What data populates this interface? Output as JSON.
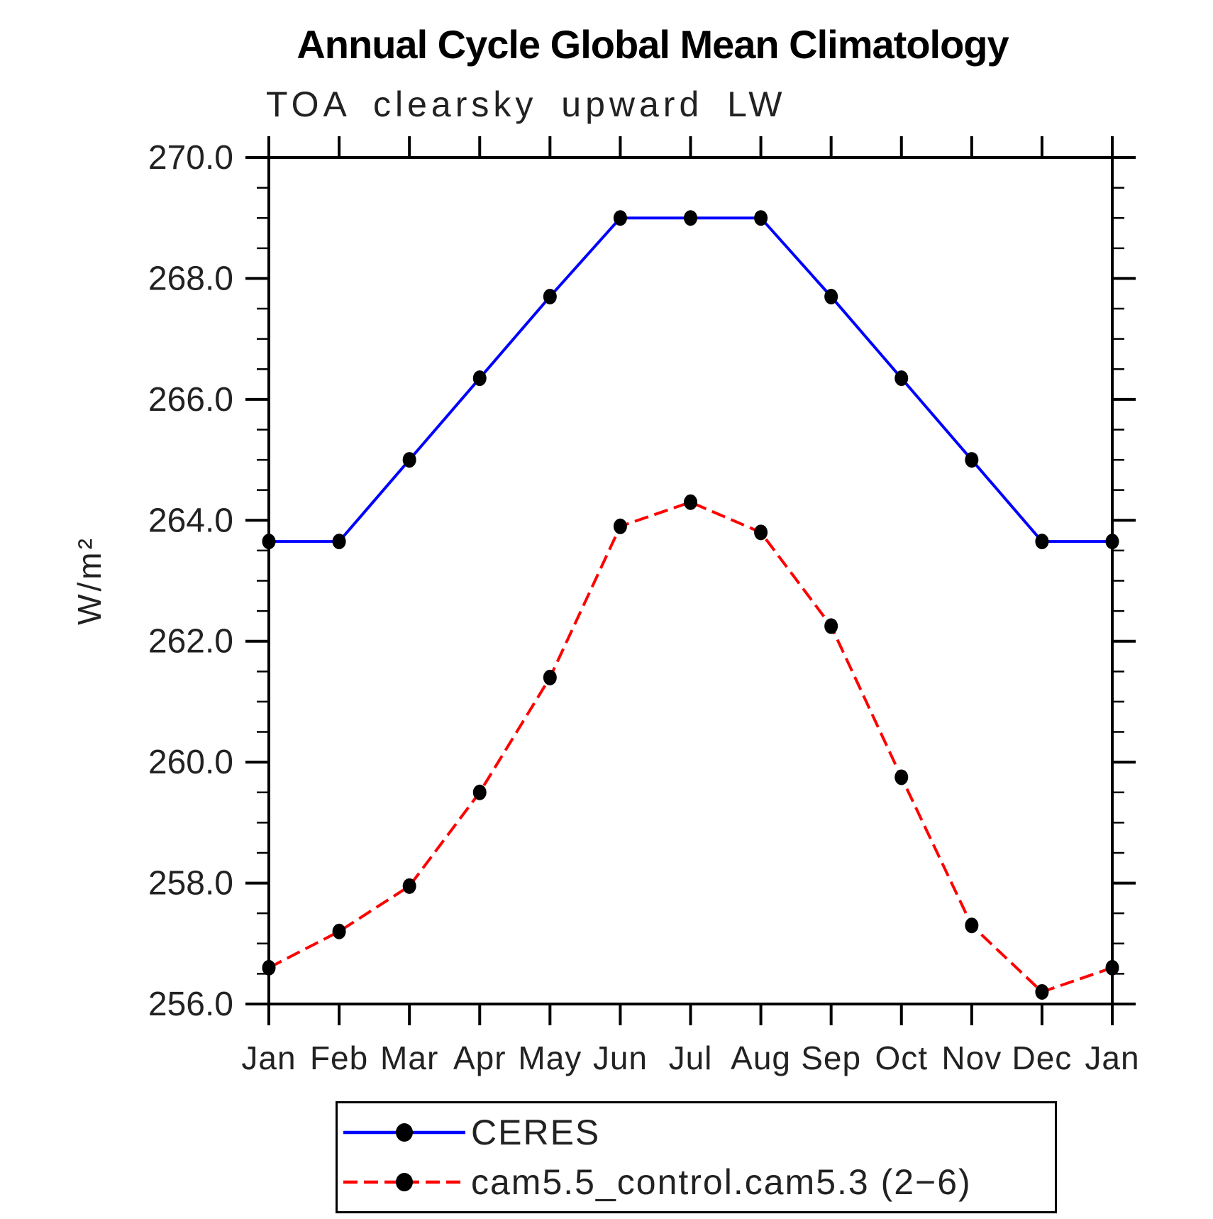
{
  "chart_data": {
    "type": "line",
    "title": "Annual Cycle Global Mean Climatology",
    "subtitle": "TOA clearsky upward LW",
    "ylabel": "W/m²",
    "xlabel": "",
    "categories": [
      "Jan",
      "Feb",
      "Mar",
      "Apr",
      "May",
      "Jun",
      "Jul",
      "Aug",
      "Sep",
      "Oct",
      "Nov",
      "Dec",
      "Jan"
    ],
    "ylim": [
      256.0,
      270.0
    ],
    "y_major_step": 2.0,
    "y_minor_step": 0.5,
    "y_tick_labels": [
      "256.0",
      "258.0",
      "260.0",
      "262.0",
      "264.0",
      "266.0",
      "268.0",
      "270.0"
    ],
    "grid": false,
    "tick_direction": "out",
    "axis_color": "#000000",
    "marker_color": "#000000",
    "legend_position": "bottom",
    "series": [
      {
        "name": "CERES",
        "color": "#0000ff",
        "line_style": "solid",
        "marker": "filled-circle",
        "values": [
          263.65,
          263.65,
          265.0,
          266.35,
          267.7,
          269.0,
          269.0,
          269.0,
          267.7,
          266.35,
          265.0,
          263.65,
          263.65
        ]
      },
      {
        "name": "cam5.5_control.cam5.3 (2−6)",
        "color": "#ff0000",
        "line_style": "dashed",
        "marker": "filled-circle",
        "values": [
          256.6,
          257.2,
          257.95,
          259.5,
          261.4,
          263.9,
          264.3,
          263.8,
          262.25,
          259.75,
          257.3,
          256.2,
          256.6
        ]
      }
    ]
  }
}
